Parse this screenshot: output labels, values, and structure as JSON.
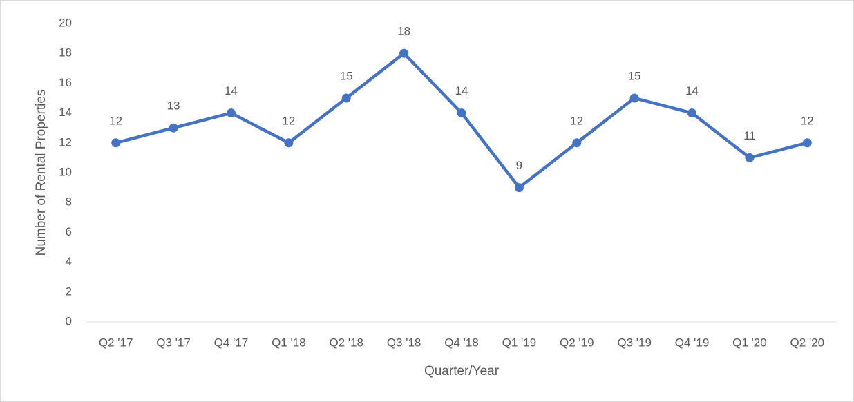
{
  "chart_data": {
    "type": "line",
    "x_label": "Quarter/Year",
    "y_label": "Number of Rental Properties",
    "categories": [
      "Q2 '17",
      "Q3 '17",
      "Q4  '17",
      "Q1 '18",
      "Q2 '18",
      "Q3 '18",
      "Q4 '18",
      "Q1 '19",
      "Q2 '19",
      "Q3 '19",
      "Q4 '19",
      "Q1 '20",
      "Q2 '20"
    ],
    "values": [
      12,
      13,
      14,
      12,
      15,
      18,
      14,
      9,
      12,
      15,
      14,
      11,
      12
    ],
    "color": "#4472c4",
    "ylim": [
      0,
      20
    ],
    "yticks": [
      0,
      2,
      4,
      6,
      8,
      10,
      12,
      14,
      16,
      18,
      20
    ],
    "grid": false,
    "data_labels": true
  }
}
